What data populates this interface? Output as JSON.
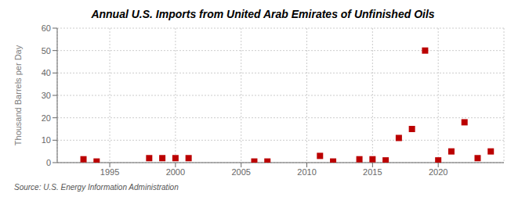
{
  "chart_data": {
    "type": "scatter",
    "title": "Annual U.S. Imports from United Arab Emirates of Unfinished Oils",
    "y_label": "Thousand Barrels per Day",
    "annotations": [
      "Source: U.S. Energy Information Administration"
    ],
    "x": [
      1993,
      1994,
      1998,
      1999,
      2000,
      2001,
      2006,
      2007,
      2011,
      2012,
      2014,
      2015,
      2016,
      2017,
      2018,
      2019,
      2020,
      2021,
      2022,
      2023,
      2024
    ],
    "values": [
      1.5,
      0.5,
      2.0,
      2.0,
      2.0,
      2.0,
      0.5,
      0.5,
      3.0,
      0.5,
      1.5,
      1.5,
      1.0,
      11.0,
      15.0,
      50.0,
      1.0,
      5.0,
      18.0,
      2.0,
      5.0
    ],
    "color": "#bb0000",
    "marker": "square",
    "xlim": [
      1991,
      2025
    ],
    "xticks": [
      1995,
      2000,
      2005,
      2010,
      2015,
      2020
    ],
    "ylim": [
      0,
      60
    ],
    "yticks": [
      0,
      10,
      20,
      30,
      40,
      50,
      60
    ],
    "grid": true
  }
}
